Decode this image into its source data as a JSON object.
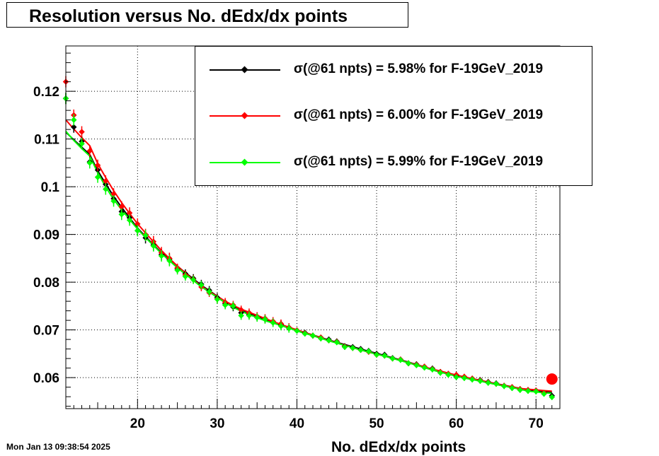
{
  "title": "Resolution versus No. dEdx/dx points",
  "timestamp": "Mon Jan 13 09:38:54 2025",
  "chart_data": {
    "type": "scatter",
    "title": "Resolution versus No. dEdx/dx points",
    "xlabel": "No. dEdx/dx points",
    "ylabel": "",
    "xlim": [
      11,
      73
    ],
    "ylim": [
      0.0535,
      0.1295
    ],
    "grid": true,
    "legend_position": "top-right",
    "x_ticks": [
      20,
      30,
      40,
      50,
      60,
      70
    ],
    "x_tick_labels": [
      "20",
      "30",
      "40",
      "50",
      "60",
      "70"
    ],
    "y_ticks": [
      0.06,
      0.07,
      0.08,
      0.09,
      0.1,
      0.11,
      0.12
    ],
    "y_tick_labels": [
      "0.06",
      "0.07",
      "0.08",
      "0.09",
      "0.1",
      "0.11",
      "0.12"
    ],
    "x": [
      11,
      12,
      13,
      14,
      15,
      16,
      17,
      18,
      19,
      20,
      21,
      22,
      23,
      24,
      25,
      26,
      27,
      28,
      29,
      30,
      31,
      32,
      33,
      34,
      35,
      36,
      37,
      38,
      39,
      40,
      41,
      42,
      43,
      44,
      45,
      46,
      47,
      48,
      49,
      50,
      51,
      52,
      53,
      54,
      55,
      56,
      57,
      58,
      59,
      60,
      61,
      62,
      63,
      64,
      65,
      66,
      67,
      68,
      69,
      70,
      71,
      72
    ],
    "series": [
      {
        "name": "σ(@61 npts) =  5.98% for F-19GeV_2019",
        "color": "#000000",
        "values": [
          0.1185,
          0.1125,
          0.1095,
          0.1052,
          0.1035,
          0.1005,
          0.0975,
          0.0948,
          0.0935,
          0.0908,
          0.0893,
          0.0878,
          0.0858,
          0.0848,
          0.0828,
          0.0818,
          0.0808,
          0.0796,
          0.0783,
          0.0768,
          0.0755,
          0.0748,
          0.0736,
          0.0732,
          0.0728,
          0.0723,
          0.0716,
          0.0711,
          0.0705,
          0.0699,
          0.0694,
          0.0688,
          0.0684,
          0.068,
          0.0676,
          0.0666,
          0.0664,
          0.066,
          0.0656,
          0.065,
          0.0648,
          0.0641,
          0.0638,
          0.063,
          0.0628,
          0.0623,
          0.0619,
          0.0612,
          0.0608,
          0.0603,
          0.0601,
          0.0598,
          0.0595,
          0.0591,
          0.0588,
          0.0583,
          0.058,
          0.0576,
          0.0574,
          0.0573,
          0.0568,
          0.0562
        ]
      },
      {
        "name": "σ(@61 npts) =  6.00% for F-19GeV_2019",
        "color": "#ff0000",
        "values": [
          0.122,
          0.115,
          0.1115,
          0.1075,
          0.1045,
          0.1012,
          0.0985,
          0.0958,
          0.0945,
          0.0922,
          0.09,
          0.0885,
          0.0862,
          0.085,
          0.083,
          0.0815,
          0.0806,
          0.079,
          0.0778,
          0.0765,
          0.0758,
          0.0752,
          0.0742,
          0.0736,
          0.0728,
          0.0724,
          0.0718,
          0.0713,
          0.0705,
          0.0699,
          0.0693,
          0.0688,
          0.0684,
          0.0678,
          0.0675,
          0.0665,
          0.0662,
          0.0658,
          0.0654,
          0.0648,
          0.0646,
          0.064,
          0.0638,
          0.063,
          0.0627,
          0.0623,
          0.0618,
          0.0612,
          0.0608,
          0.0606,
          0.0602,
          0.0598,
          0.0594,
          0.059,
          0.0587,
          0.0583,
          0.058,
          0.0576,
          0.0574,
          0.0573,
          0.0568,
          0.0597
        ]
      },
      {
        "name": "σ(@61 npts) =  5.99% for F-19GeV_2019",
        "color": "#00ff00",
        "values": [
          0.1185,
          0.114,
          0.109,
          0.105,
          0.102,
          0.0995,
          0.097,
          0.0942,
          0.093,
          0.0908,
          0.0898,
          0.0876,
          0.0855,
          0.0845,
          0.0825,
          0.0812,
          0.0805,
          0.0794,
          0.078,
          0.0764,
          0.0752,
          0.075,
          0.073,
          0.073,
          0.0726,
          0.0722,
          0.0715,
          0.0708,
          0.0703,
          0.0698,
          0.0692,
          0.0688,
          0.0682,
          0.0678,
          0.0674,
          0.0664,
          0.0662,
          0.0658,
          0.0655,
          0.0648,
          0.0646,
          0.064,
          0.0637,
          0.063,
          0.0626,
          0.0621,
          0.0617,
          0.061,
          0.0606,
          0.0601,
          0.0599,
          0.0596,
          0.0593,
          0.0589,
          0.0587,
          0.0582,
          0.0578,
          0.0574,
          0.0572,
          0.0571,
          0.0566,
          0.0559
        ]
      }
    ]
  }
}
